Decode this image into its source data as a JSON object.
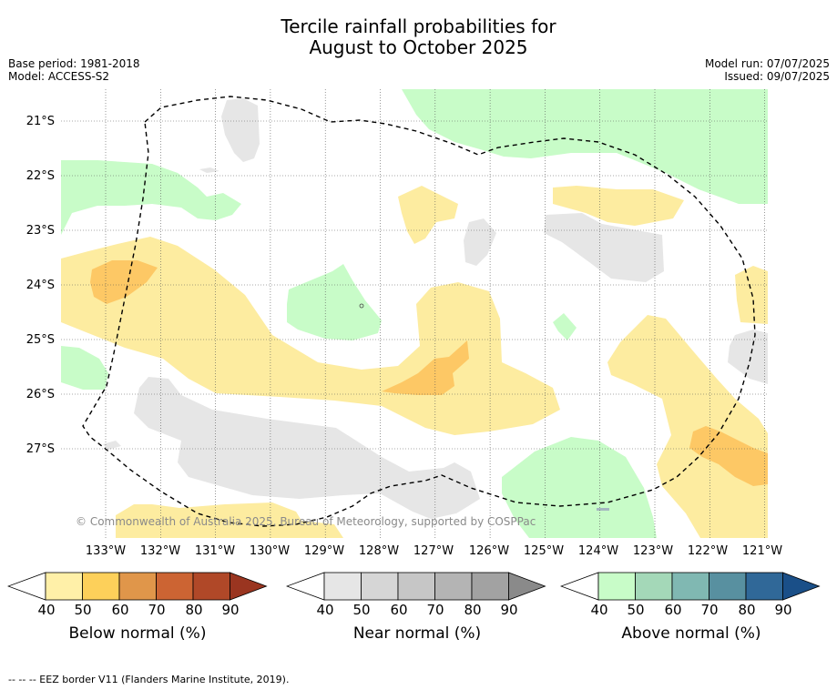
{
  "title_line1": "Tercile rainfall probabilities for",
  "title_line2": "August to October 2025",
  "meta_left": [
    "Base period: 1981-2018",
    "Model: ACCESS-S2"
  ],
  "meta_right": [
    "Model run: 07/07/2025",
    "Issued: 09/07/2025"
  ],
  "lat_labels": [
    "21°S",
    "22°S",
    "23°S",
    "24°S",
    "25°S",
    "26°S",
    "27°S"
  ],
  "lon_labels": [
    "133°W",
    "132°W",
    "131°W",
    "130°W",
    "129°W",
    "128°W",
    "127°W",
    "126°W",
    "125°W",
    "124°W",
    "123°W",
    "122°W",
    "121°W"
  ],
  "copyright": "© Commonwealth of Australia 2025, Bureau of Meteorology, supported by COSPPac",
  "colorbars": [
    {
      "title": "Below normal (%)",
      "ticks": [
        "40",
        "50",
        "60",
        "70",
        "80",
        "90"
      ],
      "colors": [
        "#fff0a8",
        "#fdd05a",
        "#e0964a",
        "#cc6433",
        "#b04828"
      ],
      "end_color": "#9a3520"
    },
    {
      "title": "Near normal (%)",
      "ticks": [
        "40",
        "50",
        "60",
        "70",
        "80",
        "90"
      ],
      "colors": [
        "#e6e6e6",
        "#d6d6d6",
        "#c6c6c6",
        "#b4b4b4",
        "#a2a2a2"
      ],
      "end_color": "#8a8a8a"
    },
    {
      "title": "Above normal (%)",
      "ticks": [
        "40",
        "50",
        "60",
        "70",
        "80",
        "90"
      ],
      "colors": [
        "#c8fcc8",
        "#a4d8b8",
        "#80b8b2",
        "#5890a0",
        "#306898"
      ],
      "end_color": "#1a4f88"
    }
  ],
  "footnote": "--  --  -- EEZ border V11 (Flanders Marine Institute, 2019).",
  "colors": {
    "below_40": "#fdeca0",
    "below_50": "#fdc865",
    "near_40": "#e6e6e6",
    "above_40": "#c8fcc8",
    "grid": "#555555"
  }
}
